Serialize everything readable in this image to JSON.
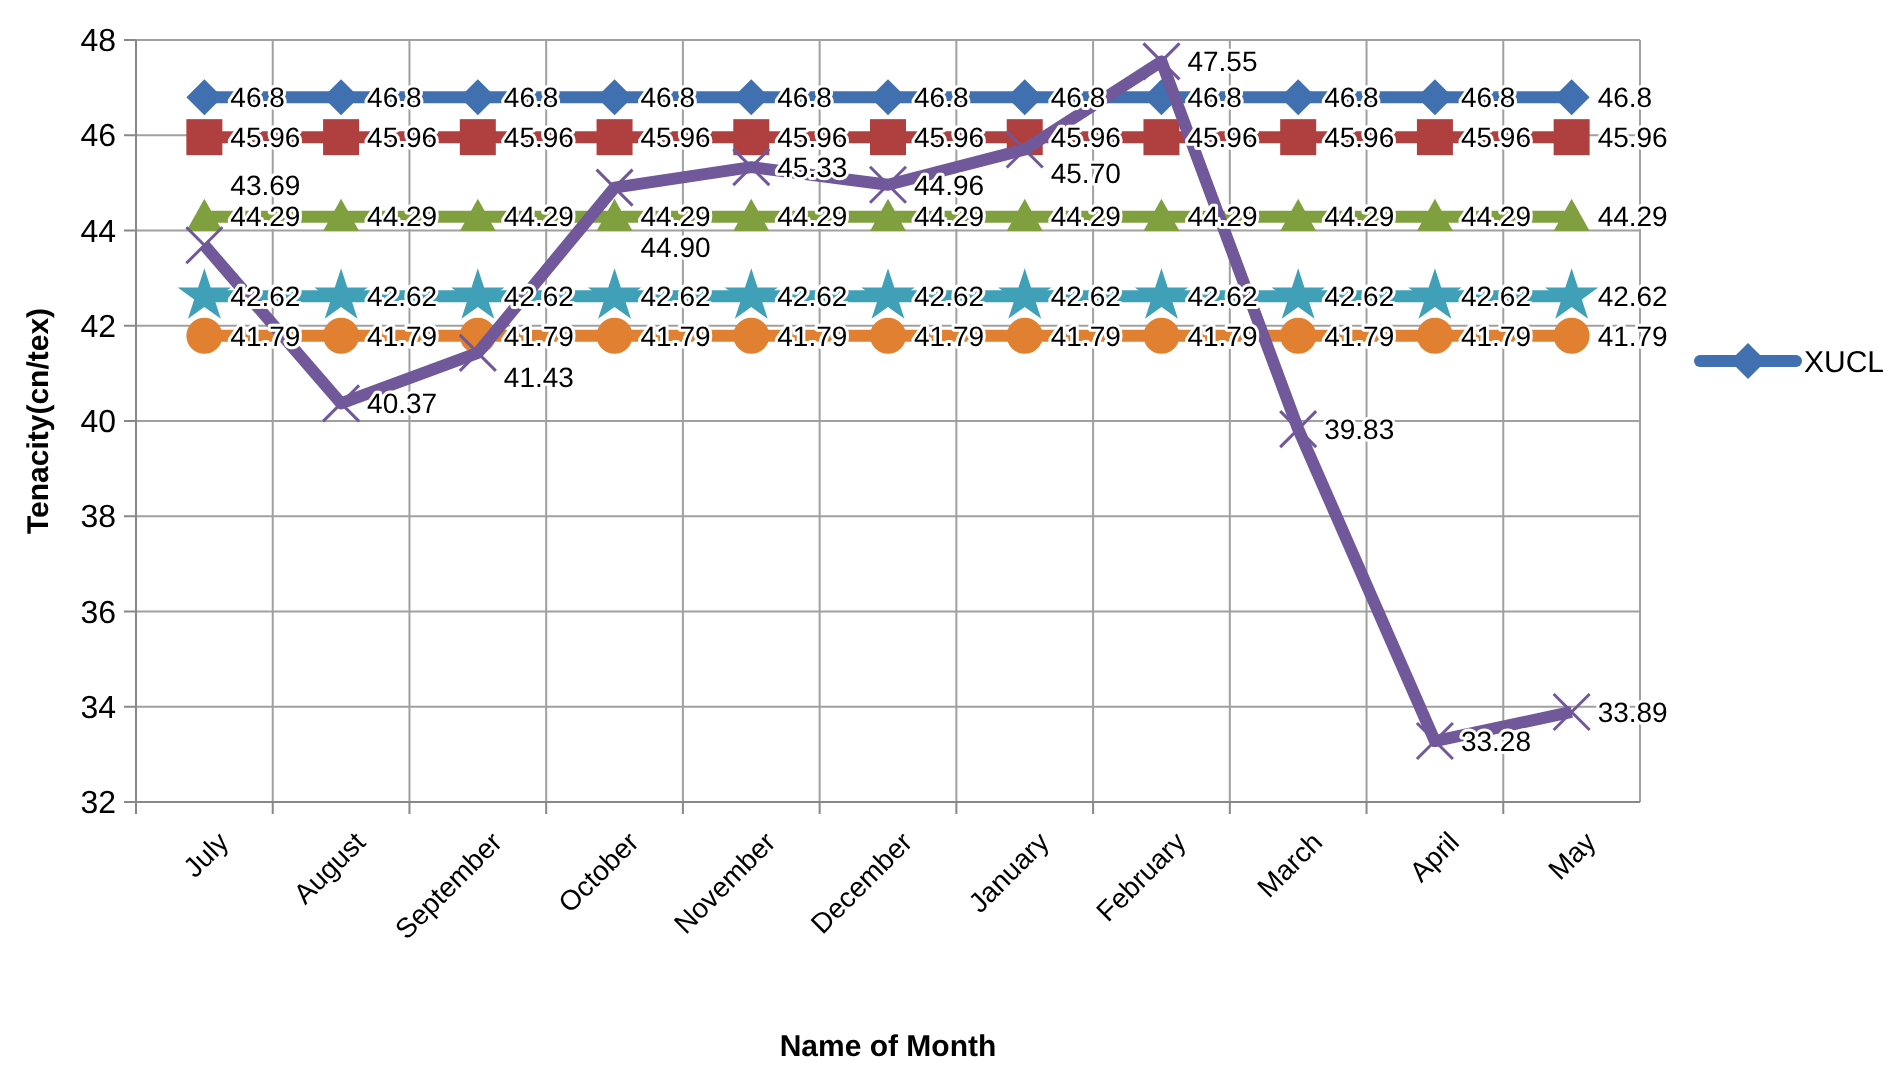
{
  "chart_data": {
    "type": "line",
    "xlabel": "Name of Month",
    "ylabel": "Tenacity(cn/tex)",
    "categories": [
      "July",
      "August",
      "September",
      "October",
      "November",
      "December",
      "January",
      "February",
      "March",
      "April",
      "May"
    ],
    "ylim": [
      32,
      48
    ],
    "yticks": [
      32,
      34,
      36,
      38,
      40,
      42,
      44,
      46,
      48
    ],
    "grid": true,
    "legend": "right",
    "data_labels": true,
    "series": [
      {
        "name": "XUCL",
        "color": "#4070b0",
        "marker": "diamond",
        "values": [
          46.8,
          46.8,
          46.8,
          46.8,
          46.8,
          46.8,
          46.8,
          46.8,
          46.8,
          46.8,
          46.8
        ]
      },
      {
        "color": "#b04040",
        "marker": "square",
        "values": [
          45.96,
          45.96,
          45.96,
          45.96,
          45.96,
          45.96,
          45.96,
          45.96,
          45.96,
          45.96,
          45.96
        ]
      },
      {
        "color": "#80a040",
        "marker": "triangle",
        "values": [
          44.29,
          44.29,
          44.29,
          44.29,
          44.29,
          44.29,
          44.29,
          44.29,
          44.29,
          44.29,
          44.29
        ]
      },
      {
        "color": "#40a0b8",
        "marker": "star",
        "values": [
          42.62,
          42.62,
          42.62,
          42.62,
          42.62,
          42.62,
          42.62,
          42.62,
          42.62,
          42.62,
          42.62
        ]
      },
      {
        "color": "#e08030",
        "marker": "circle",
        "values": [
          41.79,
          41.79,
          41.79,
          41.79,
          41.79,
          41.79,
          41.79,
          41.79,
          41.79,
          41.79,
          41.79
        ]
      },
      {
        "color": "#70589a",
        "marker": "cross",
        "value_labels": [
          "43.69",
          "40.37",
          "41.43",
          "44.90",
          "45.33",
          "44.96",
          "45.70",
          "47.55",
          "39.83",
          "33.28",
          "33.89"
        ],
        "values": [
          43.69,
          40.37,
          41.43,
          44.9,
          45.33,
          44.96,
          45.7,
          47.55,
          39.83,
          33.28,
          33.89
        ]
      }
    ]
  }
}
